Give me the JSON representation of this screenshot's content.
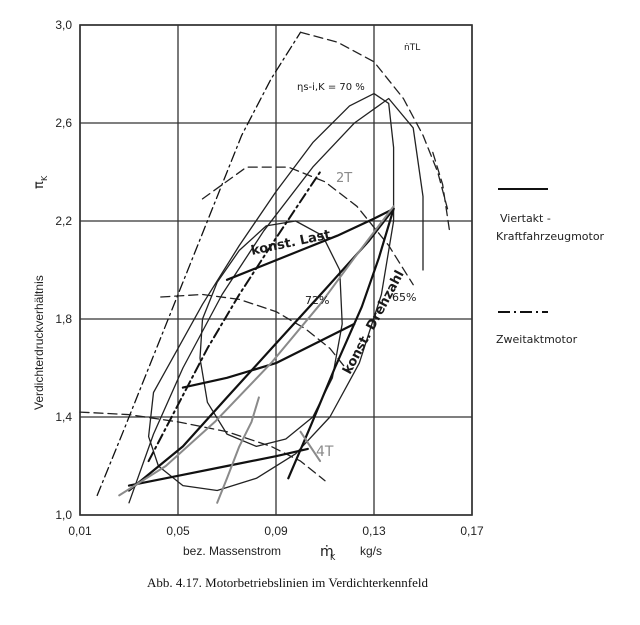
{
  "chart_data": {
    "type": "line",
    "caption": "Abb. 4.17. Motorbetriebslinien im Verdichterkennfeld",
    "xlabel_left": "bez. Massenstrom",
    "xlabel_symbol": "ṁ",
    "xlabel_symbol_sub": "K",
    "xlabel_unit": "kg/s",
    "ylabel": "Verdichterdruckverhältnis",
    "ylabel_symbol": "π",
    "ylabel_symbol_sub": "K",
    "xlim": [
      0.01,
      0.17
    ],
    "ylim": [
      1.0,
      3.0
    ],
    "xticks": [
      0.01,
      0.05,
      0.09,
      0.13,
      0.17
    ],
    "xtick_labels": [
      "0,01",
      "0,05",
      "0,09",
      "0,13",
      "0,17"
    ],
    "yticks": [
      1.0,
      1.4,
      1.8,
      2.2,
      2.6,
      3.0
    ],
    "ytick_labels": [
      "1,0",
      "1,4",
      "1,8",
      "2,2",
      "2,6",
      "3,0"
    ],
    "grid": true,
    "annotations": {
      "eff70": "ηs-i,K = 70 %",
      "eff72": "72%",
      "eff65": "65%",
      "n_tl": "ṅTL",
      "konst_last": "konst. Last",
      "konst_drehzahl": "konst. Drehzahl",
      "label_2t": "2T",
      "label_4t": "4T"
    },
    "legend": {
      "position": "right",
      "items": [
        {
          "style": "solid",
          "label_line1": "Viertakt -",
          "label_line2": "Kraftfahrzeugmotor"
        },
        {
          "style": "dashdot",
          "label_line1": "Zweitaktmotor",
          "label_line2": ""
        }
      ]
    },
    "series": [
      {
        "kind": "surge",
        "style": "dashdot",
        "x": [
          0.017,
          0.028,
          0.04,
          0.052,
          0.064,
          0.076,
          0.088,
          0.1
        ],
        "y": [
          1.08,
          1.35,
          1.65,
          1.95,
          2.25,
          2.55,
          2.78,
          2.97
        ]
      },
      {
        "kind": "efficiency",
        "style": "solid",
        "name": "70 %",
        "x": [
          0.04,
          0.05,
          0.06,
          0.075,
          0.09,
          0.105,
          0.12,
          0.13,
          0.136,
          0.138,
          0.138,
          0.133,
          0.124,
          0.112,
          0.098,
          0.082,
          0.066,
          0.052,
          0.042,
          0.038,
          0.04
        ],
        "y": [
          1.5,
          1.68,
          1.86,
          2.1,
          2.32,
          2.52,
          2.67,
          2.72,
          2.68,
          2.5,
          2.2,
          1.9,
          1.62,
          1.4,
          1.25,
          1.15,
          1.1,
          1.12,
          1.2,
          1.32,
          1.5
        ]
      },
      {
        "kind": "efficiency",
        "style": "solid",
        "name": "72%",
        "x": [
          0.06,
          0.066,
          0.075,
          0.086,
          0.098,
          0.109,
          0.116,
          0.117,
          0.113,
          0.105,
          0.094,
          0.082,
          0.07,
          0.062,
          0.059,
          0.06
        ],
        "y": [
          1.8,
          1.95,
          2.08,
          2.18,
          2.2,
          2.14,
          2.0,
          1.78,
          1.56,
          1.4,
          1.31,
          1.28,
          1.33,
          1.46,
          1.64,
          1.8
        ]
      },
      {
        "kind": "efficiency",
        "style": "solid",
        "name": "65%",
        "x": [
          0.03,
          0.04,
          0.052,
          0.068,
          0.085,
          0.105,
          0.122,
          0.136,
          0.146,
          0.15,
          0.15
        ],
        "y": [
          1.05,
          1.33,
          1.6,
          1.9,
          2.16,
          2.42,
          2.6,
          2.7,
          2.58,
          2.3,
          2.0
        ]
      },
      {
        "kind": "speed",
        "style": "dashed",
        "x": [
          0.01,
          0.03,
          0.05,
          0.07,
          0.088,
          0.1,
          0.11
        ],
        "y": [
          1.42,
          1.41,
          1.38,
          1.34,
          1.28,
          1.22,
          1.14
        ]
      },
      {
        "kind": "speed",
        "style": "dashed",
        "x": [
          0.043,
          0.06,
          0.075,
          0.09,
          0.102,
          0.112,
          0.12
        ],
        "y": [
          1.89,
          1.9,
          1.88,
          1.83,
          1.76,
          1.68,
          1.58
        ]
      },
      {
        "kind": "speed",
        "style": "dashed",
        "x": [
          0.06,
          0.078,
          0.095,
          0.11,
          0.123,
          0.136,
          0.146
        ],
        "y": [
          2.29,
          2.42,
          2.42,
          2.36,
          2.26,
          2.1,
          1.94
        ]
      },
      {
        "kind": "speed",
        "style": "dashed",
        "x": [
          0.1,
          0.115,
          0.13,
          0.142,
          0.15,
          0.156,
          0.16
        ],
        "y": [
          2.97,
          2.93,
          2.85,
          2.7,
          2.55,
          2.4,
          2.25
        ]
      },
      {
        "kind": "choke",
        "style": "dashed",
        "x": [
          0.154,
          0.158,
          0.161
        ],
        "y": [
          2.48,
          2.35,
          2.15
        ]
      },
      {
        "kind": "operating-4t",
        "style": "solid-bold",
        "x": [
          0.03,
          0.052,
          0.07,
          0.09,
          0.11,
          0.128,
          0.138
        ],
        "y": [
          1.1,
          1.28,
          1.48,
          1.7,
          1.92,
          2.12,
          2.25
        ]
      },
      {
        "kind": "operating-4t",
        "style": "solid-bold",
        "x": [
          0.07,
          0.085,
          0.1,
          0.115,
          0.13,
          0.138
        ],
        "y": [
          1.96,
          2.02,
          2.08,
          2.14,
          2.21,
          2.25
        ]
      },
      {
        "kind": "operating-4t",
        "style": "solid-bold",
        "x": [
          0.052,
          0.07,
          0.09,
          0.11,
          0.122
        ],
        "y": [
          1.52,
          1.56,
          1.62,
          1.72,
          1.78
        ]
      },
      {
        "kind": "operating-4t",
        "style": "solid-bold",
        "x": [
          0.03,
          0.05,
          0.07,
          0.09,
          0.103
        ],
        "y": [
          1.12,
          1.16,
          1.2,
          1.24,
          1.27
        ]
      },
      {
        "kind": "operating-4t",
        "style": "solid-bold",
        "x": [
          0.095,
          0.104,
          0.114,
          0.125,
          0.132,
          0.138
        ],
        "y": [
          1.15,
          1.36,
          1.6,
          1.85,
          2.05,
          2.25
        ]
      },
      {
        "kind": "operating-2t",
        "style": "dashdot-bold",
        "x": [
          0.038,
          0.05,
          0.062,
          0.075,
          0.088,
          0.098,
          0.108
        ],
        "y": [
          1.22,
          1.45,
          1.68,
          1.9,
          2.1,
          2.25,
          2.4
        ]
      },
      {
        "kind": "operating-gray",
        "style": "gray",
        "x": [
          0.026,
          0.045,
          0.065,
          0.088,
          0.108,
          0.122,
          0.138
        ],
        "y": [
          1.08,
          1.2,
          1.38,
          1.62,
          1.86,
          2.05,
          2.26
        ]
      },
      {
        "kind": "operating-gray",
        "style": "gray",
        "x": [
          0.066,
          0.07,
          0.075,
          0.08,
          0.083
        ],
        "y": [
          1.05,
          1.15,
          1.28,
          1.38,
          1.48
        ]
      },
      {
        "kind": "operating-gray",
        "style": "gray",
        "x": [
          0.1,
          0.104,
          0.108
        ],
        "y": [
          1.34,
          1.28,
          1.22
        ]
      }
    ]
  }
}
